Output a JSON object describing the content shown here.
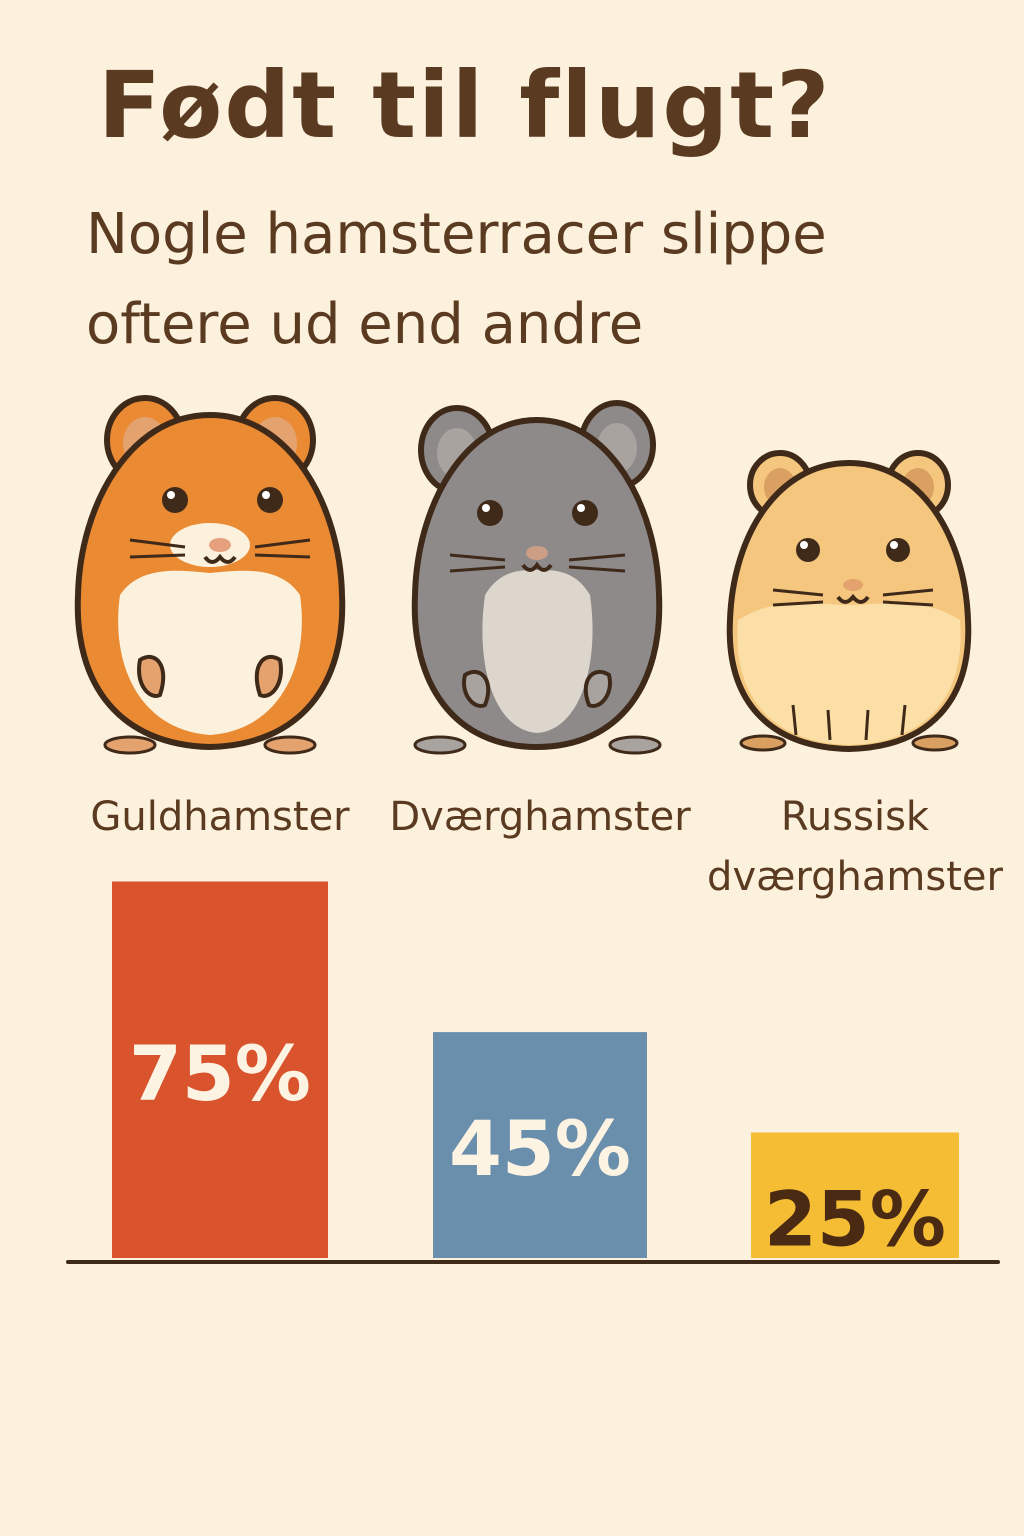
{
  "title": "Født til flugt?",
  "subtitle": [
    "Nogle hamsterracer slippe",
    "oftere ud end andre"
  ],
  "hamsters": [
    {
      "icon": "golden-hamster-icon",
      "fur": "#ea8a33",
      "ear": "#e4a26e",
      "belly": "#fbf1dc",
      "nose": "#e6a07e"
    },
    {
      "icon": "dwarf-hamster-icon",
      "fur": "#8e8a8a",
      "ear": "#a9a3a0",
      "belly": "#ddd6cc",
      "nose": "#cc9e86"
    },
    {
      "icon": "russian-dwarf-hamster-icon",
      "fur": "#f5c77e",
      "ear": "#d9a061",
      "belly": "#fbdfa6",
      "nose": "#e4a26e"
    }
  ],
  "chart_data": {
    "type": "bar",
    "categories": [
      [
        "Guldhamster"
      ],
      [
        "Dværghamster"
      ],
      [
        "Russisk",
        "dværghamster"
      ]
    ],
    "values": [
      75,
      45,
      25
    ],
    "value_labels": [
      "75%",
      "45%",
      "25%"
    ],
    "colors": [
      "#d9532c",
      "#6a8fac",
      "#f5bd33"
    ],
    "label_colors": [
      "#fdf3e3",
      "#fdf3e3",
      "#4a2a12"
    ],
    "ylim": [
      0,
      100
    ],
    "grid": false,
    "legend": "none"
  }
}
